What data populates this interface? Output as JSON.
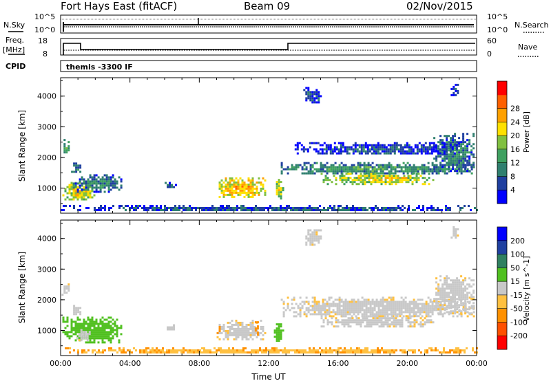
{
  "header": {
    "site": "Fort Hays East (fitACF)",
    "beam": "Beam 09",
    "date": "02/Nov/2015"
  },
  "panel_labels": {
    "nsky": "N.Sky",
    "nsearch": "N.Search",
    "freq_line1": "Freq.",
    "freq_line2": "[MHz]",
    "nave": "Nave",
    "cpid": "CPID",
    "cpid_value": "themis -3300 IF"
  },
  "noise_ticks": {
    "top": "10^5",
    "bottom": "10^0"
  },
  "freq_ticks": {
    "left": [
      "18",
      "8"
    ],
    "right": [
      "60",
      "0"
    ]
  },
  "colors": {
    "power_scale": [
      "#0000ff",
      "#1f3f9f",
      "#2f7f6f",
      "#3fa060",
      "#80c040",
      "#ffe000",
      "#ffa000",
      "#ff6000",
      "#ff0000"
    ],
    "velocity_scale": [
      "#ff0000",
      "#ff5000",
      "#ff9000",
      "#ffc040",
      "#c8c8c8",
      "#50c020",
      "#2f8060",
      "#1f40a0",
      "#0000ff"
    ],
    "ground_scatter": "#c8c8c8"
  },
  "chart_data": [
    {
      "type": "heatmap",
      "name": "power",
      "xlabel": "",
      "ylabel": "Slant Range [km]",
      "xlim": [
        0,
        24
      ],
      "ylim": [
        180,
        4600
      ],
      "yticks": [
        "1000",
        "2000",
        "3000",
        "4000"
      ],
      "colorbar_label": "Power [dB]",
      "colorbar_ticks": [
        "4",
        "8",
        "12",
        "16",
        "20",
        "24",
        "28"
      ],
      "regions": [
        {
          "t": [
            0.1,
            2.0
          ],
          "r": [
            600,
            1200
          ],
          "v": 23
        },
        {
          "t": [
            0.7,
            3.5
          ],
          "r": [
            900,
            1450
          ],
          "v": 12
        },
        {
          "t": [
            0.05,
            0.5
          ],
          "r": [
            2100,
            2600
          ],
          "v": 13
        },
        {
          "t": [
            0.6,
            1.1
          ],
          "r": [
            1500,
            1900
          ],
          "v": 11
        },
        {
          "t": [
            6.0,
            6.6
          ],
          "r": [
            1000,
            1200
          ],
          "v": 10
        },
        {
          "t": [
            9.0,
            11.8
          ],
          "r": [
            700,
            1350
          ],
          "v": 26
        },
        {
          "t": [
            12.3,
            12.8
          ],
          "r": [
            650,
            1300
          ],
          "v": 22
        },
        {
          "t": [
            12.7,
            23.8
          ],
          "r": [
            1450,
            1850
          ],
          "v": 14
        },
        {
          "t": [
            15.0,
            21.5
          ],
          "r": [
            1150,
            1500
          ],
          "v": 22
        },
        {
          "t": [
            21.5,
            23.8
          ],
          "r": [
            1550,
            2800
          ],
          "v": 12
        },
        {
          "t": [
            13.5,
            23.0
          ],
          "r": [
            2100,
            2500
          ],
          "v": 8
        },
        {
          "t": [
            0,
            24
          ],
          "r": [
            250,
            450
          ],
          "v": 9
        },
        {
          "t": [
            14.0,
            15.0
          ],
          "r": [
            3800,
            4300
          ],
          "v": 8
        },
        {
          "t": [
            22.5,
            22.9
          ],
          "r": [
            4000,
            4400
          ],
          "v": 7
        }
      ]
    },
    {
      "type": "heatmap",
      "name": "velocity",
      "xlabel": "Time UT",
      "ylabel": "Slant Range [km]",
      "xlim": [
        0,
        24
      ],
      "ylim": [
        180,
        4600
      ],
      "xticks": [
        "00:00",
        "04:00",
        "08:00",
        "12:00",
        "16:00",
        "20:00",
        "00:00"
      ],
      "yticks": [
        "1000",
        "2000",
        "3000",
        "4000"
      ],
      "colorbar_label": "Velocity [m s^-1]",
      "colorbar_ticks": [
        "-200",
        "-100",
        "-50",
        "-15",
        "15",
        "50",
        "100",
        "200"
      ],
      "regions": [
        {
          "t": [
            0.1,
            3.5
          ],
          "r": [
            600,
            1450
          ],
          "v": 40
        },
        {
          "t": [
            0.9,
            1.7
          ],
          "r": [
            650,
            1050
          ],
          "v": 0
        },
        {
          "t": [
            0.05,
            0.5
          ],
          "r": [
            2100,
            2600
          ],
          "v": 0
        },
        {
          "t": [
            0.6,
            1.1
          ],
          "r": [
            1500,
            1900
          ],
          "v": 0
        },
        {
          "t": [
            6.0,
            6.6
          ],
          "r": [
            1000,
            1200
          ],
          "v": 0
        },
        {
          "t": [
            9.0,
            11.8
          ],
          "r": [
            700,
            1350
          ],
          "v": 0
        },
        {
          "t": [
            9.0,
            9.2
          ],
          "r": [
            900,
            1350
          ],
          "v": -60
        },
        {
          "t": [
            11.2,
            11.4
          ],
          "r": [
            800,
            1300
          ],
          "v": -60
        },
        {
          "t": [
            12.3,
            12.8
          ],
          "r": [
            650,
            1300
          ],
          "v": 35
        },
        {
          "t": [
            12.7,
            23.8
          ],
          "r": [
            1450,
            2100
          ],
          "v": 0
        },
        {
          "t": [
            15.0,
            21.5
          ],
          "r": [
            1150,
            1500
          ],
          "v": 0
        },
        {
          "t": [
            21.5,
            23.8
          ],
          "r": [
            1550,
            2800
          ],
          "v": 0
        },
        {
          "t": [
            0,
            24
          ],
          "r": [
            250,
            450
          ],
          "v": -40
        },
        {
          "t": [
            14.0,
            15.0
          ],
          "r": [
            3800,
            4300
          ],
          "v": 0
        },
        {
          "t": [
            22.5,
            22.9
          ],
          "r": [
            4000,
            4400
          ],
          "v": 0
        }
      ]
    }
  ]
}
